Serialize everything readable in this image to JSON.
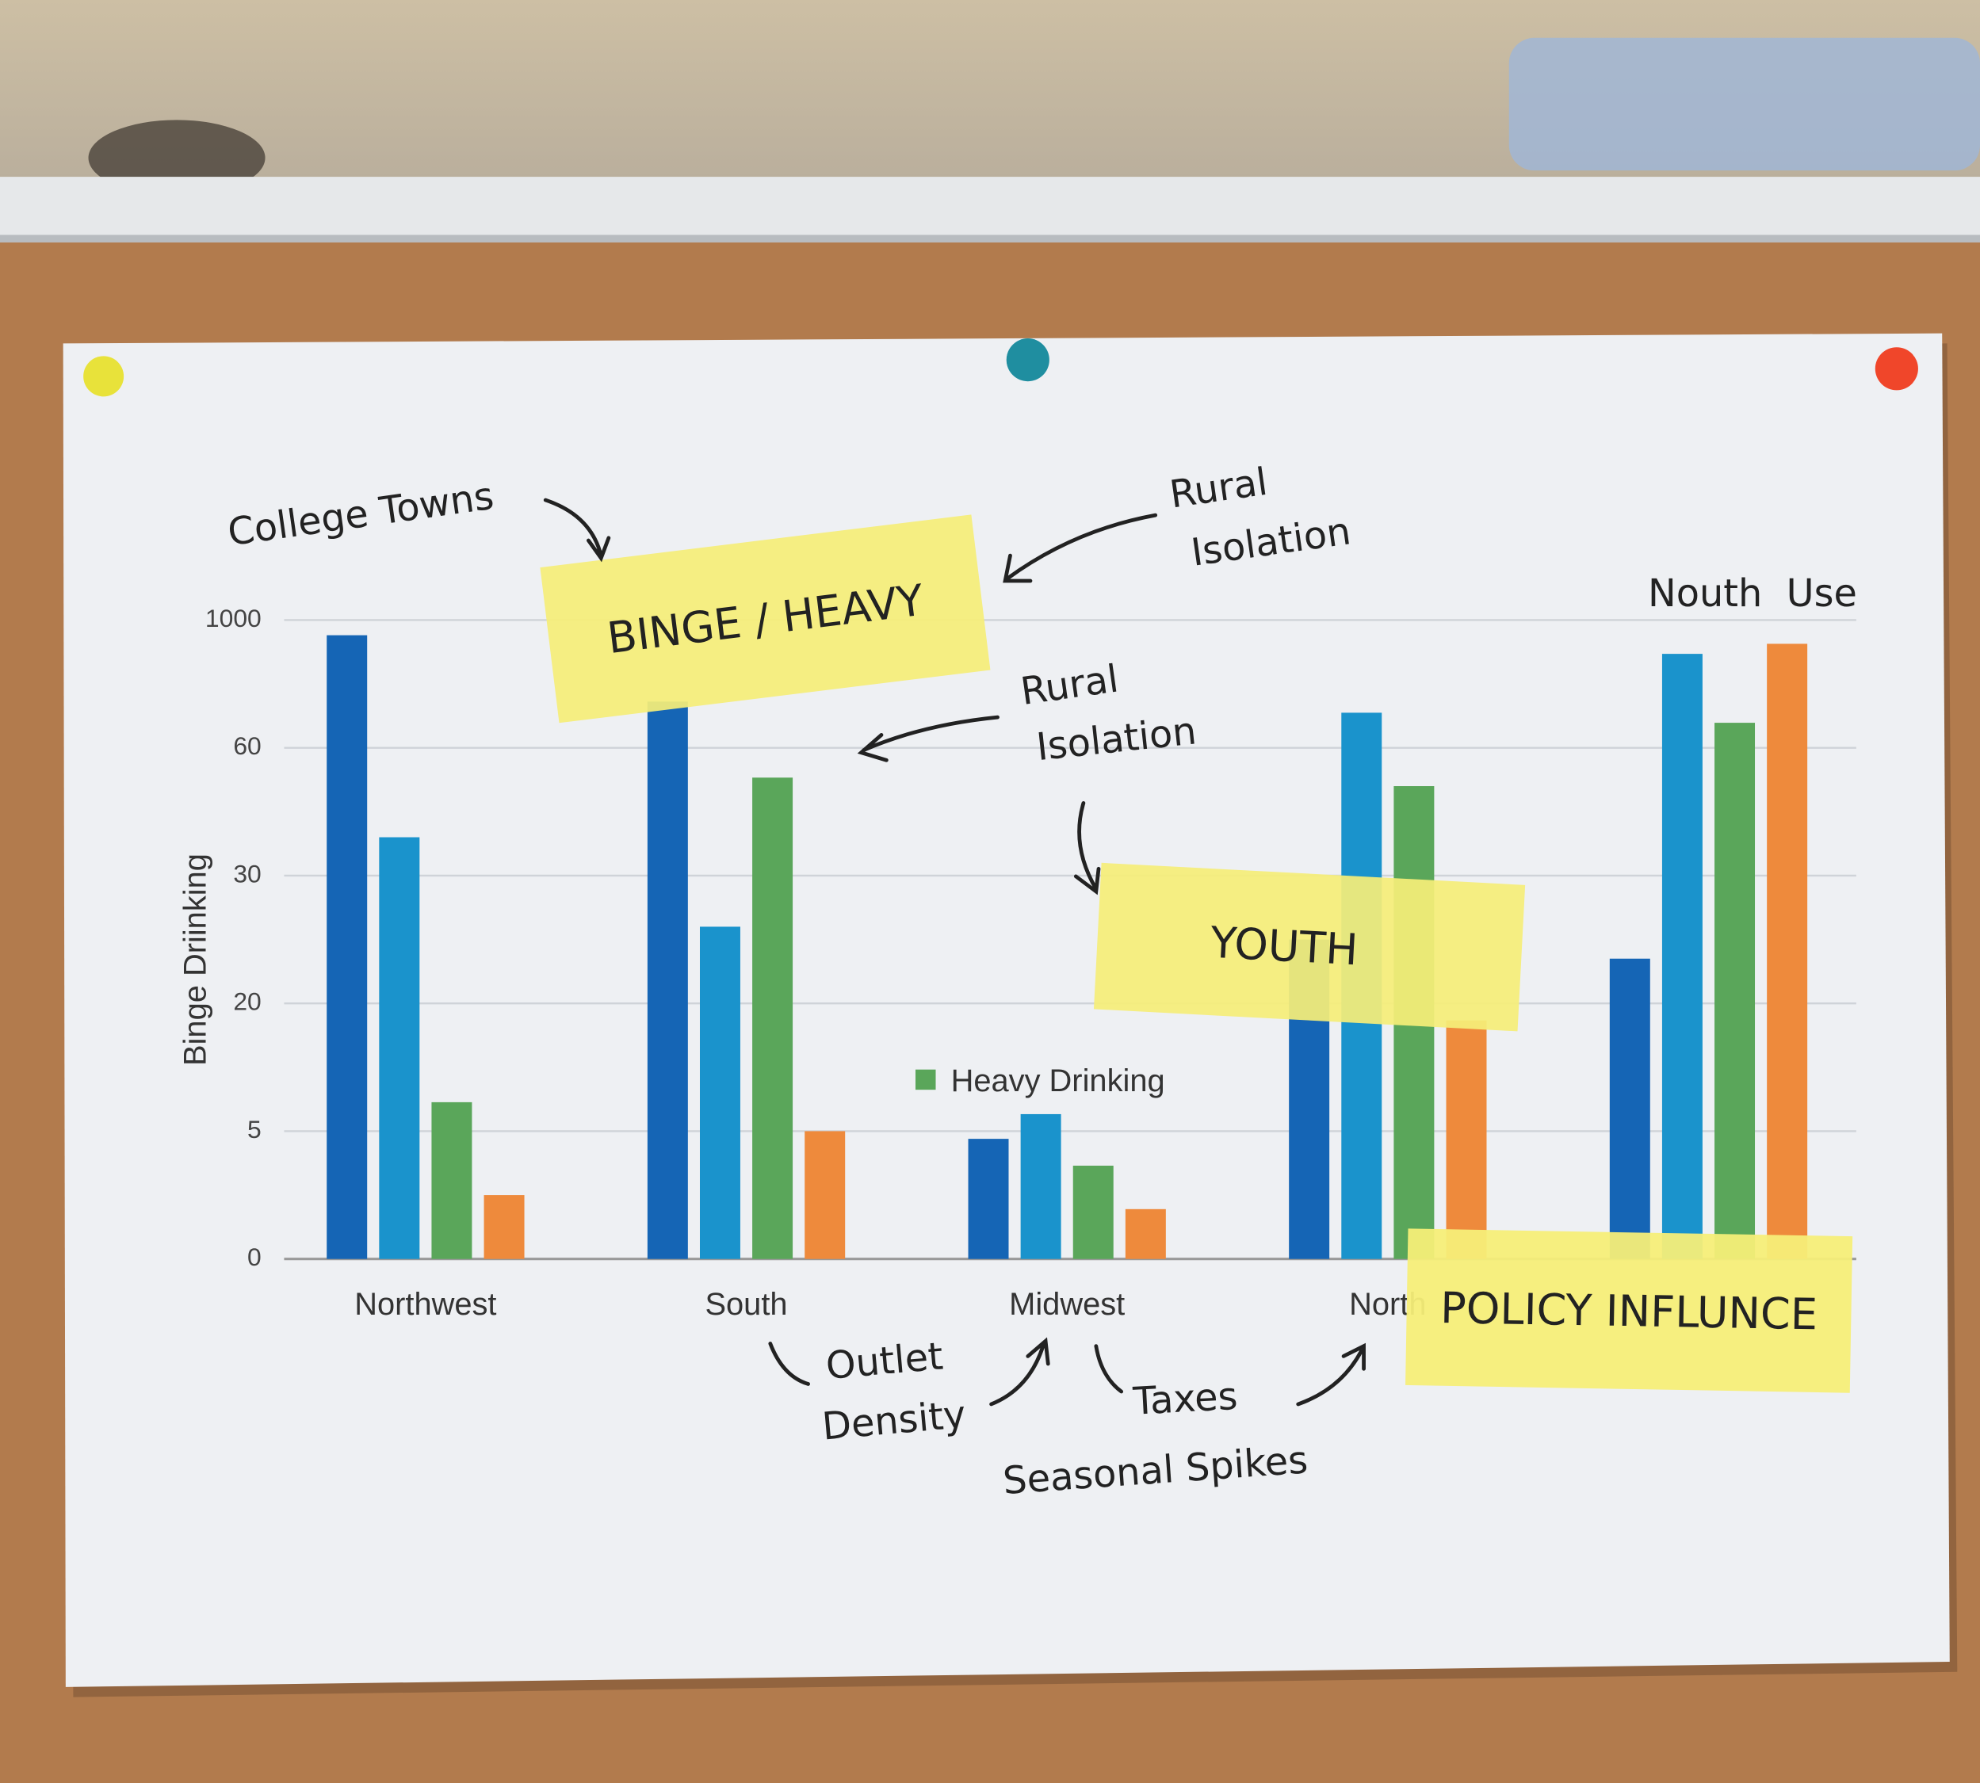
{
  "chart_data": {
    "type": "bar",
    "y_label": "Binge Driinking",
    "categories": [
      "Northwest",
      "South",
      "Midwest",
      "North",
      null
    ],
    "series": [
      {
        "color": "#1565b5",
        "values": [
          888,
          400,
          4.7,
          25,
          23.5
        ]
      },
      {
        "color": "#1a93cc",
        "values": [
          39,
          26,
          7,
          318,
          751
        ]
      },
      {
        "name": "Heavy Drinking",
        "color": "#5aa65a",
        "values": [
          8.4,
          53,
          3.65,
          51,
          244
        ]
      },
      {
        "color": "#ee8a3c",
        "values": [
          2.5,
          5,
          1.95,
          18,
          825
        ]
      }
    ],
    "ylim": [
      0,
      1000
    ],
    "yticks": [
      0,
      5,
      20,
      30,
      60,
      1000
    ],
    "grid": true,
    "legend": "center",
    "annotations": [
      [
        "College Towns"
      ],
      [
        "Rural",
        "Isolation"
      ],
      [
        "Rural",
        "Isolation"
      ],
      [
        "Nouth  Use"
      ],
      [
        "Outlet",
        "Density"
      ],
      [
        "Taxes"
      ],
      [
        "Seasonal Spikes"
      ]
    ],
    "notes": [
      "BINGE / HEAVY",
      "YOUTH",
      "POLICY INFLUNCE"
    ]
  }
}
